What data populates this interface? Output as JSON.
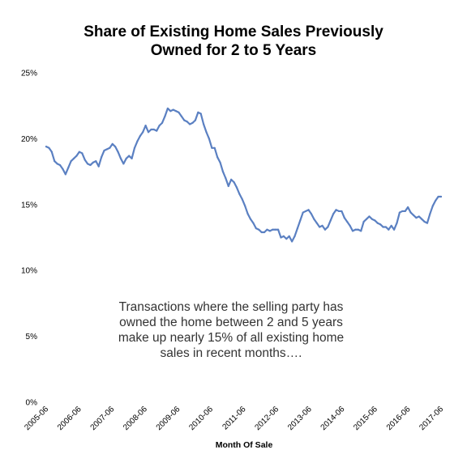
{
  "chart_data": {
    "type": "line",
    "title": [
      "Share of Existing Home Sales Previously",
      "Owned for 2 to 5 Years"
    ],
    "xlabel": "Month Of Sale",
    "ylabel": "",
    "ylim": [
      0,
      25
    ],
    "yticks": [
      "0%",
      "5%",
      "10%",
      "15%",
      "20%",
      "25%"
    ],
    "yticks_values": [
      0,
      5,
      10,
      15,
      20,
      25
    ],
    "xticks": [
      "2005-06",
      "2006-06",
      "2007-06",
      "2008-06",
      "2009-06",
      "2010-06",
      "2011-06",
      "2012-06",
      "2013-06",
      "2014-06",
      "2015-06",
      "2016-06",
      "2017-06"
    ],
    "grid": false,
    "series_color": "#5b80c2",
    "annotation": [
      "Transactions where the selling party has",
      "owned the home between 2 and 5 years",
      "make up nearly 15% of all existing home",
      "sales in recent months…."
    ],
    "series": [
      {
        "values": [
          19.4,
          19.3,
          19.0,
          18.3,
          18.1,
          18.0,
          17.7,
          17.3,
          17.8,
          18.3,
          18.5,
          18.7,
          19.0,
          18.9,
          18.4,
          18.1,
          18.0,
          18.2,
          18.3,
          17.9,
          18.6,
          19.1,
          19.2,
          19.3,
          19.6,
          19.4,
          19.0,
          18.5,
          18.1,
          18.5,
          18.7,
          18.5,
          19.3,
          19.8,
          20.2,
          20.5,
          21.0,
          20.5,
          20.7,
          20.7,
          20.6,
          21.0,
          21.2,
          21.7,
          22.3,
          22.1,
          22.2,
          22.1,
          22.0,
          21.7,
          21.4,
          21.3,
          21.1,
          21.2,
          21.4,
          22.0,
          21.9,
          21.1,
          20.5,
          20.0,
          19.3,
          19.3,
          18.6,
          18.2,
          17.5,
          17.0,
          16.4,
          16.9,
          16.7,
          16.3,
          15.8,
          15.4,
          14.9,
          14.3,
          13.9,
          13.6,
          13.2,
          13.1,
          12.9,
          12.9,
          13.1,
          13.0,
          13.1,
          13.1,
          13.1,
          12.5,
          12.6,
          12.4,
          12.6,
          12.2,
          12.6,
          13.2,
          13.8,
          14.4,
          14.5,
          14.6,
          14.3,
          13.9,
          13.6,
          13.3,
          13.4,
          13.1,
          13.3,
          13.8,
          14.3,
          14.6,
          14.5,
          14.5,
          14.0,
          13.7,
          13.4,
          13.0,
          13.1,
          13.1,
          13.0,
          13.7,
          13.9,
          14.1,
          13.9,
          13.8,
          13.6,
          13.5,
          13.3,
          13.3,
          13.1,
          13.4,
          13.1,
          13.6,
          14.4,
          14.5,
          14.5,
          14.8,
          14.4,
          14.2,
          14.0,
          14.1,
          13.9,
          13.7,
          13.6,
          14.3,
          14.9,
          15.3,
          15.6,
          15.6
        ]
      }
    ]
  }
}
